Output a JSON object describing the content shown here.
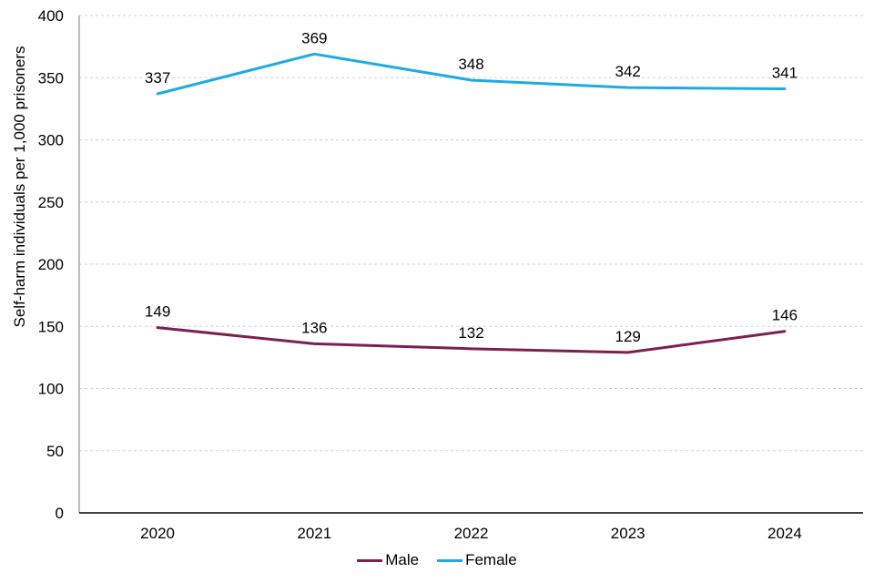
{
  "chart_data": {
    "type": "line",
    "title": "",
    "xlabel": "",
    "ylabel": "Self-harm individuals per 1,000 prisoners",
    "categories": [
      "2020",
      "2021",
      "2022",
      "2023",
      "2024"
    ],
    "series": [
      {
        "name": "Male",
        "color": "#7B2150",
        "values": [
          149,
          136,
          132,
          129,
          146
        ]
      },
      {
        "name": "Female",
        "color": "#1CACE3",
        "values": [
          337,
          369,
          348,
          342,
          341
        ]
      }
    ],
    "ylim": [
      0,
      400
    ],
    "yticks": [
      0,
      50,
      100,
      150,
      200,
      250,
      300,
      350,
      400
    ],
    "grid": "horizontal-dashed",
    "data_labels": true,
    "legend_position": "bottom"
  },
  "colors": {
    "background": "#ffffff",
    "gridline": "#d2d2d2",
    "y_axis_line": "#a6a6a6",
    "x_axis_line": "#000000",
    "text": "#000000"
  }
}
